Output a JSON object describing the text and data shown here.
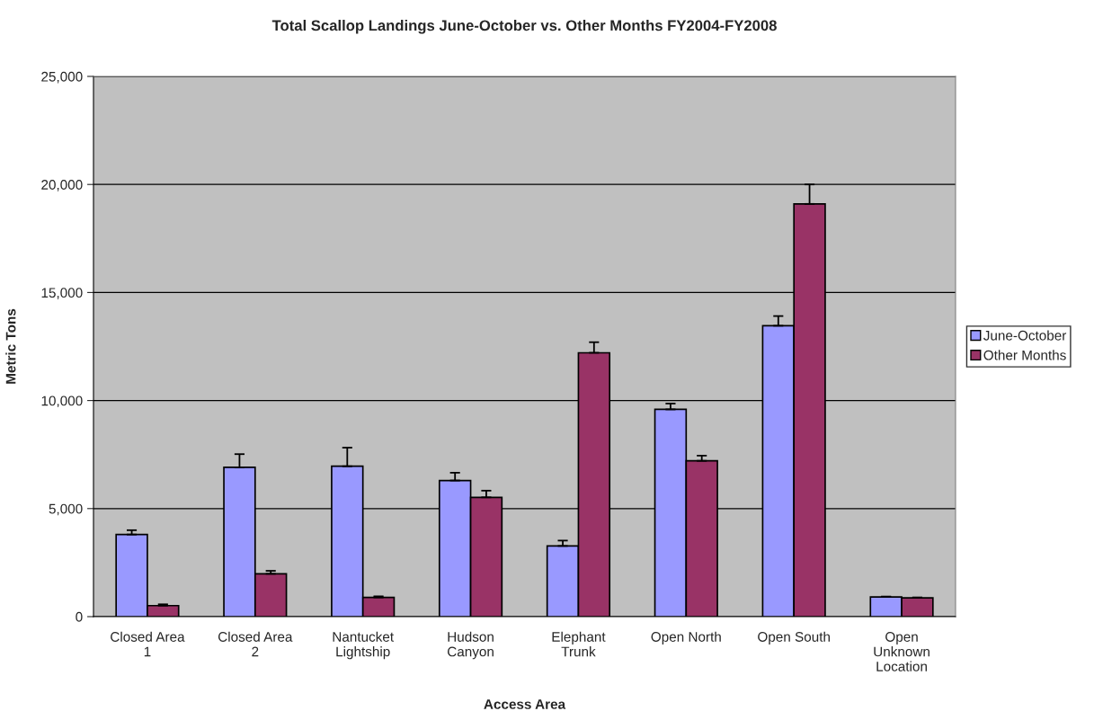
{
  "chart_data": {
    "type": "bar",
    "title": "Total Scallop Landings June-October vs. Other Months FY2004-FY2008",
    "xlabel": "Access Area",
    "ylabel": "Metric Tons",
    "categories": [
      "Closed Area\n1",
      "Closed Area\n2",
      "Nantucket\nLightship",
      "Hudson\nCanyon",
      "Elephant\nTrunk",
      "Open North",
      "Open South",
      "Open\nUnknown\nLocation"
    ],
    "series": [
      {
        "name": "June-October",
        "color": "#9999ff",
        "values": [
          3800,
          6910,
          6960,
          6300,
          3270,
          9590,
          13460,
          910
        ],
        "errors": [
          [
            3800,
            4000
          ],
          [
            6910,
            7520
          ],
          [
            6960,
            7820
          ],
          [
            6300,
            6660
          ],
          [
            3270,
            3520
          ],
          [
            9590,
            9860
          ],
          [
            13460,
            13910
          ],
          [
            910,
            930
          ]
        ]
      },
      {
        "name": "Other Months",
        "color": "#993366",
        "values": [
          510,
          1980,
          890,
          5520,
          12210,
          7210,
          19100,
          870
        ],
        "errors": [
          [
            510,
            570
          ],
          [
            1980,
            2120
          ],
          [
            890,
            940
          ],
          [
            5520,
            5830
          ],
          [
            12210,
            12700
          ],
          [
            7210,
            7450
          ],
          [
            19100,
            20000
          ],
          [
            870,
            890
          ]
        ]
      }
    ],
    "ylim": [
      0,
      25000
    ],
    "yticks": [
      {
        "value": 0,
        "label": "0"
      },
      {
        "value": 5000,
        "label": "5,000"
      },
      {
        "value": 10000,
        "label": "10,000"
      },
      {
        "value": 15000,
        "label": "15,000"
      },
      {
        "value": 20000,
        "label": "20,000"
      },
      {
        "value": 25000,
        "label": "25,000"
      }
    ],
    "grid": "y",
    "legend": "right"
  }
}
